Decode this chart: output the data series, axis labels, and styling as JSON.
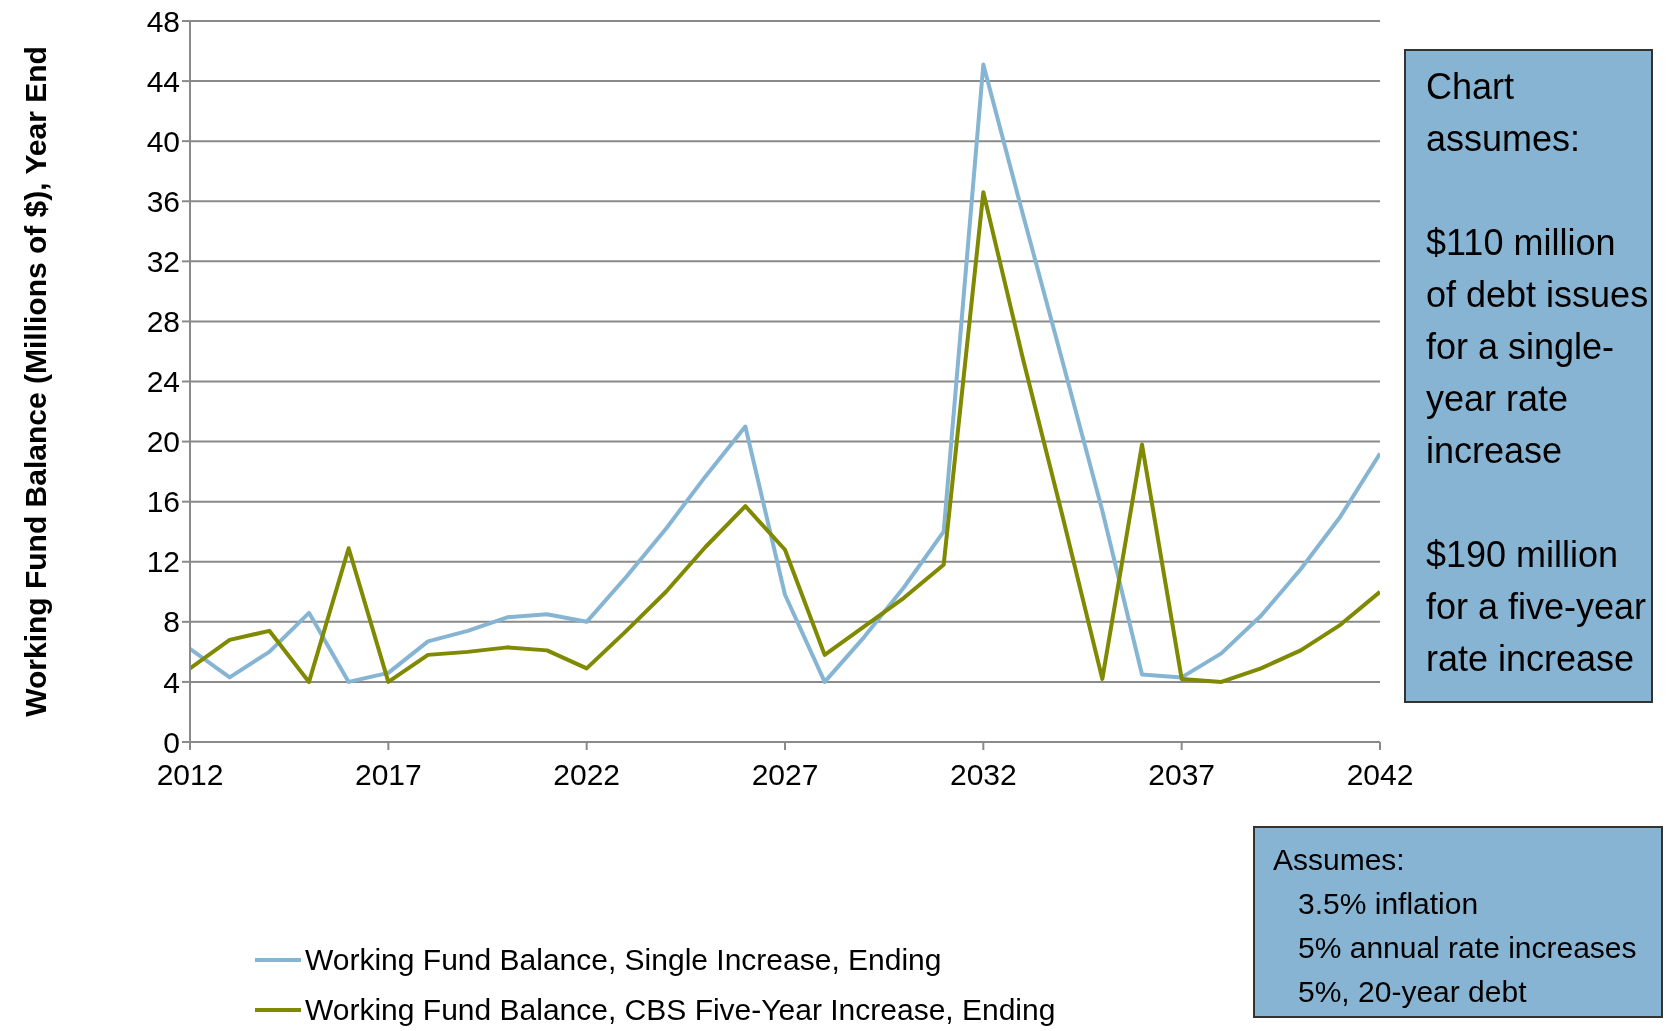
{
  "chart_data": {
    "type": "line",
    "ylabel": "Working Fund Balance (Millions of $), Year End",
    "x": [
      2012,
      2013,
      2014,
      2015,
      2016,
      2017,
      2018,
      2019,
      2020,
      2021,
      2022,
      2023,
      2024,
      2025,
      2026,
      2027,
      2028,
      2029,
      2030,
      2031,
      2032,
      2033,
      2034,
      2035,
      2036,
      2037,
      2038,
      2039,
      2040,
      2041,
      2042
    ],
    "series": [
      {
        "name": "Working Fund Balance, Single Increase, Ending",
        "color": "#85b5d3",
        "values": [
          6.2,
          4.3,
          6.0,
          8.6,
          4.0,
          4.6,
          6.7,
          7.4,
          8.3,
          8.5,
          8.0,
          11.0,
          14.2,
          17.7,
          21.0,
          9.8,
          4.0,
          7.0,
          10.3,
          14.0,
          45.1,
          35.1,
          25.3,
          15.4,
          4.5,
          4.3,
          5.9,
          8.4,
          11.5,
          15.0,
          19.2
        ]
      },
      {
        "name": "Working Fund Balance, CBS Five-Year Increase, Ending",
        "color": "#7f8a00",
        "values": [
          4.9,
          6.8,
          7.4,
          4.0,
          12.9,
          4.0,
          5.8,
          6.0,
          6.3,
          6.1,
          4.9,
          7.4,
          10.0,
          13.0,
          15.7,
          12.8,
          5.8,
          7.7,
          9.6,
          11.8,
          36.6,
          25.5,
          15.0,
          4.2,
          19.8,
          4.2,
          4.0,
          4.9,
          6.1,
          7.8,
          10.0
        ]
      }
    ],
    "xlim": [
      2012,
      2042
    ],
    "xticks": [
      2012,
      2017,
      2022,
      2027,
      2032,
      2037,
      2042
    ],
    "ylim": [
      0,
      48
    ],
    "yticks": [
      0,
      4,
      8,
      12,
      16,
      20,
      24,
      28,
      32,
      36,
      40,
      44,
      48
    ],
    "grid": "y",
    "legend": "bottom",
    "marker": "none",
    "line_style": "solid",
    "annotations": [
      "Chart assumes:\n\n$110 million of debt issues for a single-year rate increase\n\n$190 million for a five-year rate increase",
      "Assumes:\n   3.5% inflation\n   5% annual rate increases\n   5%, 20-year debt"
    ]
  }
}
